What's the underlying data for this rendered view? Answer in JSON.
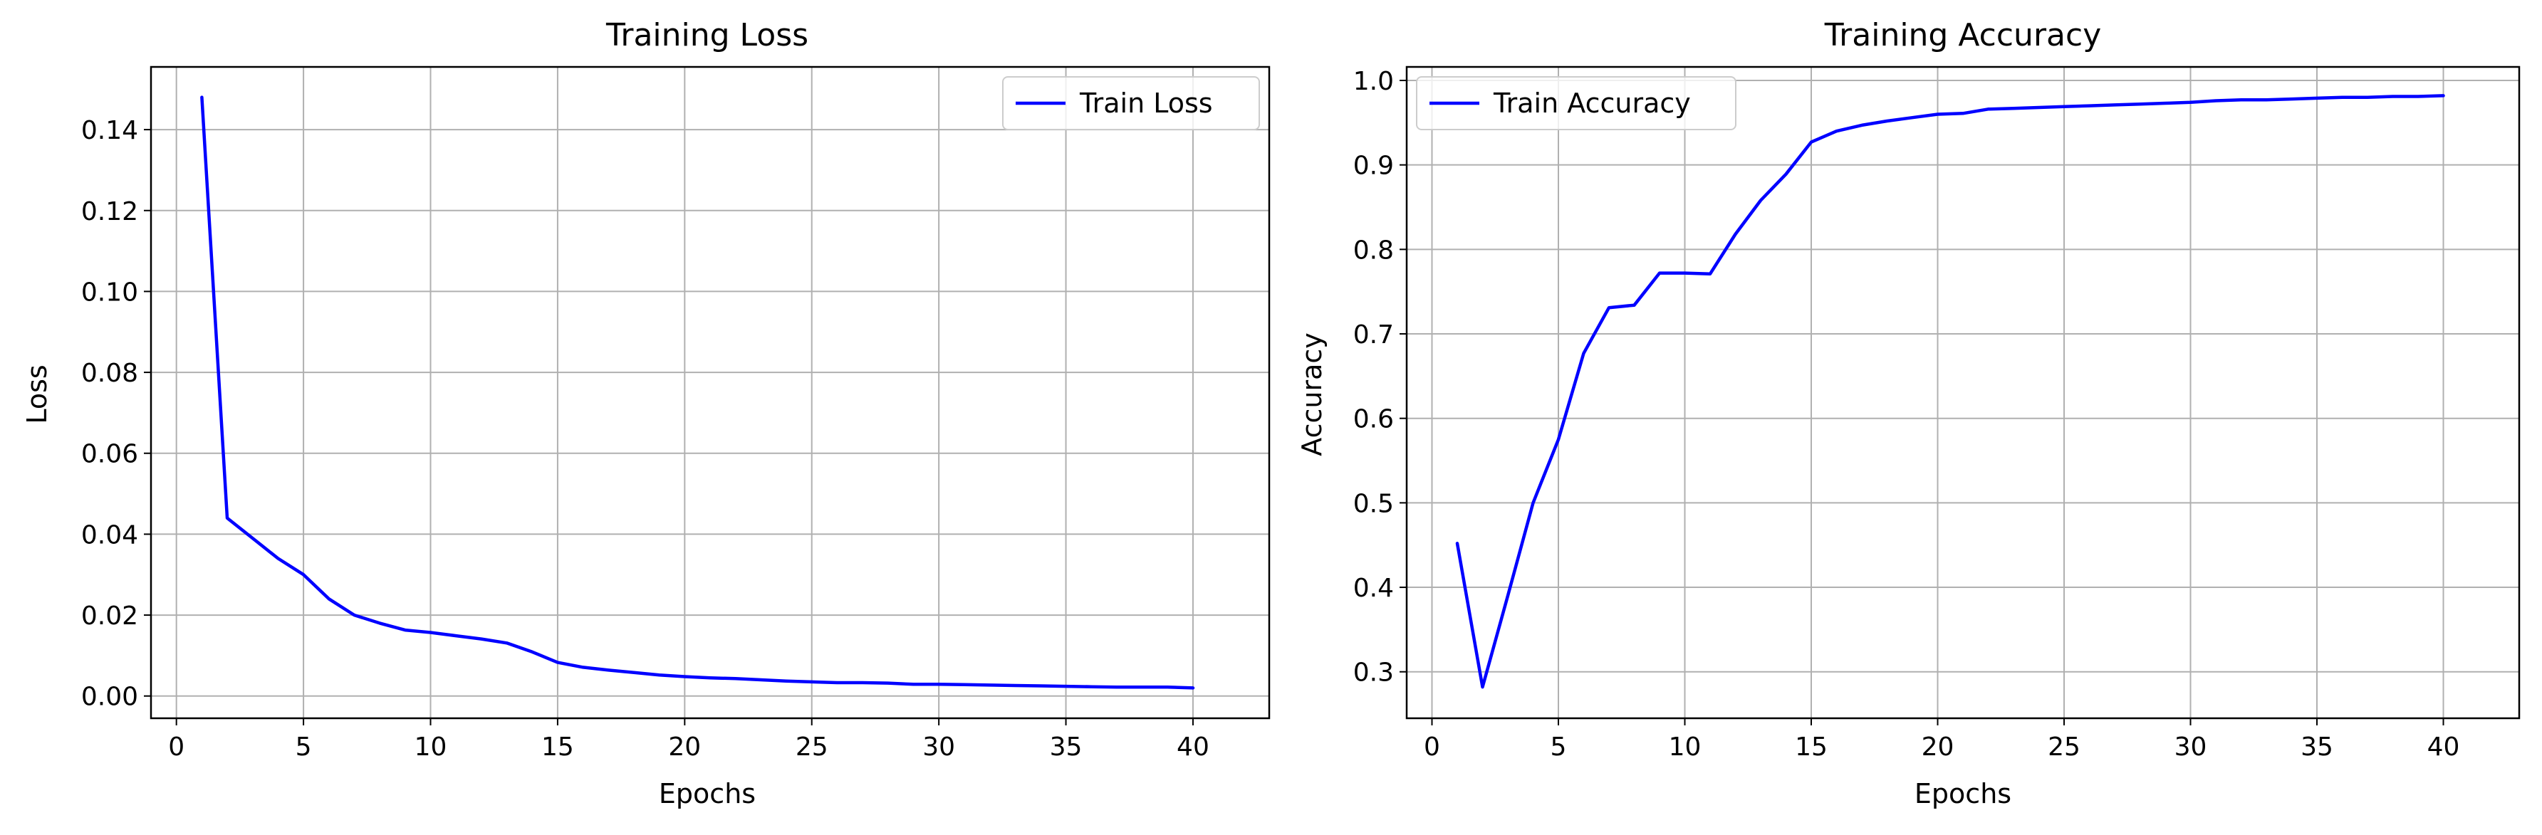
{
  "chart_data": [
    {
      "type": "line",
      "title": "Training Loss",
      "xlabel": "Epochs",
      "ylabel": "Loss",
      "xlim": [
        -1,
        43
      ],
      "ylim": [
        -0.0055,
        0.1555
      ],
      "xticks": [
        0,
        5,
        10,
        15,
        20,
        25,
        30,
        35,
        40
      ],
      "yticks": [
        0.0,
        0.02,
        0.04,
        0.06,
        0.08,
        0.1,
        0.12,
        0.14
      ],
      "ytick_labels": [
        "0.00",
        "0.02",
        "0.04",
        "0.06",
        "0.08",
        "0.10",
        "0.12",
        "0.14"
      ],
      "grid": true,
      "legend_position": "upper right",
      "line_color": "#0000ff",
      "series": [
        {
          "name": "Train Loss",
          "x": [
            1,
            2,
            3,
            4,
            5,
            6,
            7,
            8,
            9,
            10,
            11,
            12,
            13,
            14,
            15,
            16,
            17,
            18,
            19,
            20,
            21,
            22,
            23,
            24,
            25,
            26,
            27,
            28,
            29,
            30,
            31,
            32,
            33,
            34,
            35,
            36,
            37,
            38,
            39,
            40
          ],
          "y": [
            0.148,
            0.044,
            0.039,
            0.034,
            0.03,
            0.024,
            0.02,
            0.018,
            0.0163,
            0.0157,
            0.0149,
            0.0141,
            0.0131,
            0.0109,
            0.0083,
            0.0071,
            0.0064,
            0.0058,
            0.0052,
            0.0048,
            0.0045,
            0.0043,
            0.004,
            0.0037,
            0.0035,
            0.0033,
            0.0033,
            0.0032,
            0.0029,
            0.0029,
            0.0028,
            0.0027,
            0.0026,
            0.0025,
            0.0024,
            0.0023,
            0.0022,
            0.0022,
            0.0022,
            0.002
          ]
        }
      ]
    },
    {
      "type": "line",
      "title": "Training Accuracy",
      "xlabel": "Epochs",
      "ylabel": "Accuracy",
      "xlim": [
        -1,
        43
      ],
      "ylim": [
        0.245,
        1.016
      ],
      "xticks": [
        0,
        5,
        10,
        15,
        20,
        25,
        30,
        35,
        40
      ],
      "yticks": [
        0.3,
        0.4,
        0.5,
        0.6,
        0.7,
        0.8,
        0.9,
        1.0
      ],
      "ytick_labels": [
        "0.3",
        "0.4",
        "0.5",
        "0.6",
        "0.7",
        "0.8",
        "0.9",
        "1.0"
      ],
      "grid": true,
      "legend_position": "upper left",
      "line_color": "#0000ff",
      "series": [
        {
          "name": "Train Accuracy",
          "x": [
            1,
            2,
            3,
            4,
            5,
            6,
            7,
            8,
            9,
            10,
            11,
            12,
            13,
            14,
            15,
            16,
            17,
            18,
            19,
            20,
            21,
            22,
            23,
            24,
            25,
            26,
            27,
            28,
            29,
            30,
            31,
            32,
            33,
            34,
            35,
            36,
            37,
            38,
            39,
            40
          ],
          "y": [
            0.452,
            0.282,
            0.39,
            0.5,
            0.575,
            0.677,
            0.731,
            0.734,
            0.772,
            0.772,
            0.771,
            0.818,
            0.858,
            0.889,
            0.927,
            0.94,
            0.947,
            0.952,
            0.956,
            0.96,
            0.961,
            0.966,
            0.967,
            0.968,
            0.969,
            0.97,
            0.971,
            0.972,
            0.973,
            0.974,
            0.976,
            0.977,
            0.977,
            0.978,
            0.979,
            0.98,
            0.98,
            0.981,
            0.981,
            0.982
          ]
        }
      ]
    }
  ]
}
